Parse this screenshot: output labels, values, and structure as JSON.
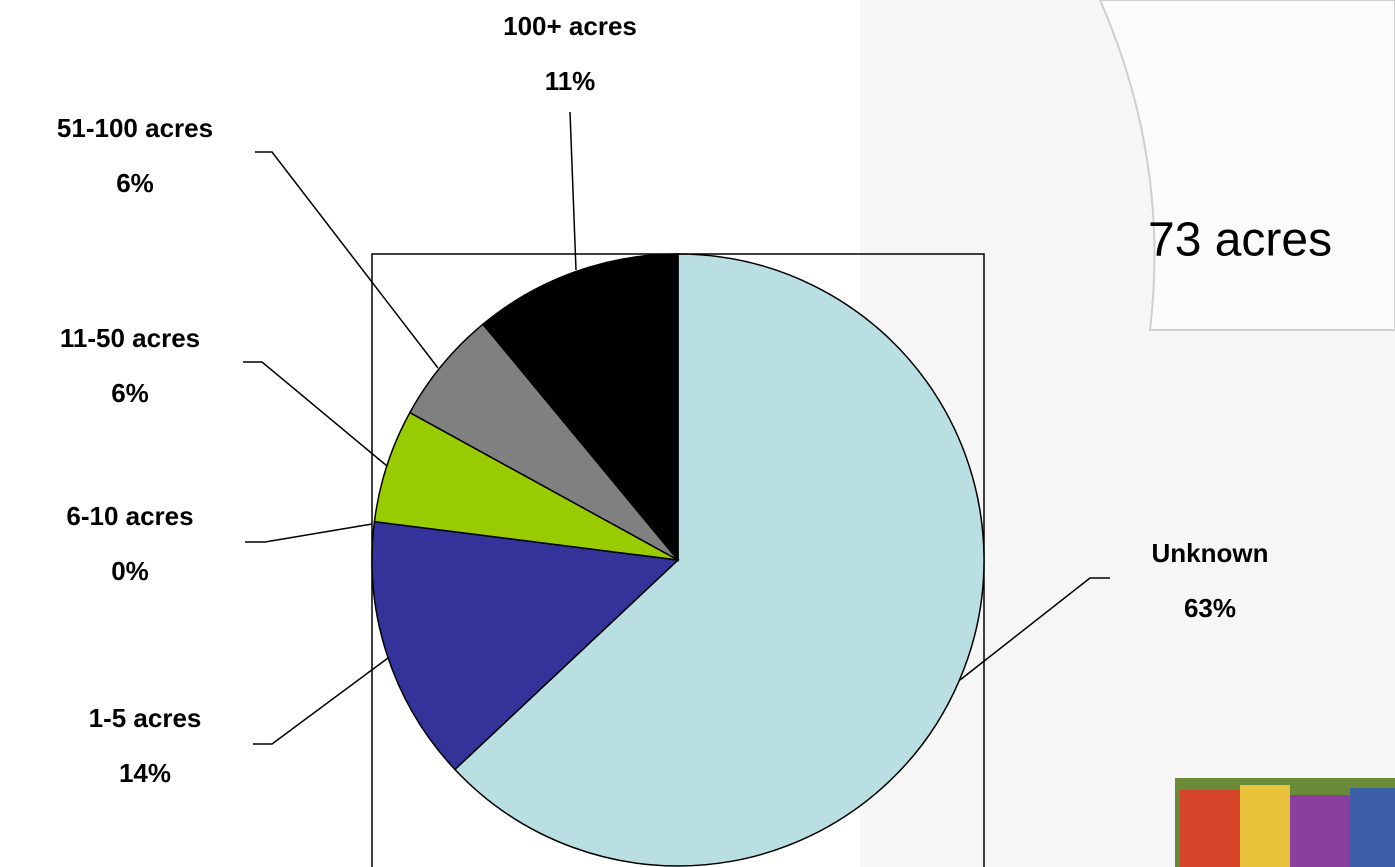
{
  "chart_data": {
    "type": "pie",
    "categories": [
      "Unknown",
      "1-5 acres",
      "6-10 acres",
      "11-50 acres",
      "51-100 acres",
      "100+ acres"
    ],
    "values": [
      63,
      14,
      0,
      6,
      6,
      11
    ],
    "value_labels": [
      "63%",
      "14%",
      "0%",
      "6%",
      "6%",
      "11%"
    ],
    "colors": [
      "#b9dfe3",
      "#333399",
      "#ffffff",
      "#99cc00",
      "#808080",
      "#000000"
    ]
  },
  "annotation": "73 acres"
}
